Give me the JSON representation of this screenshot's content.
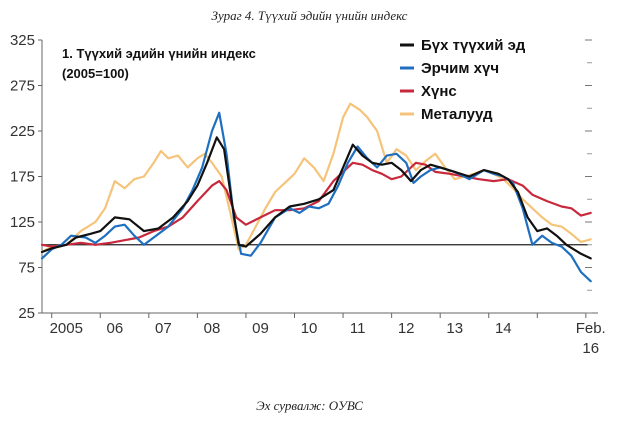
{
  "figure": {
    "caption": "Зураг 4. Түүхий эдийн үнийн индекс",
    "source": "Эх сурвалж: OУВС"
  },
  "chart_data": {
    "type": "line",
    "title": "1. Түүхий эдийн үнийн индекс",
    "subtitle": "(2005=100)",
    "xlabel": "",
    "ylabel": "",
    "ylim": [
      25,
      325
    ],
    "xlim": [
      2004.8,
      2016.25
    ],
    "yticks": [
      25,
      75,
      125,
      175,
      225,
      275,
      325
    ],
    "xticks": [
      {
        "label": "2005",
        "x": 2005.3
      },
      {
        "label": "06",
        "x": 2006.3
      },
      {
        "label": "07",
        "x": 2007.3
      },
      {
        "label": "08",
        "x": 2008.3
      },
      {
        "label": "09",
        "x": 2009.3
      },
      {
        "label": "10",
        "x": 2010.3
      },
      {
        "label": "11",
        "x": 2011.3
      },
      {
        "label": "12",
        "x": 2012.3
      },
      {
        "label": "13",
        "x": 2013.3
      },
      {
        "label": "14",
        "x": 2014.3
      },
      {
        "label": "Feb.",
        "label2": "16",
        "x": 2016.1
      }
    ],
    "reference_line": 100,
    "legend_position": "top-right",
    "grid": false,
    "series": [
      {
        "name": "Металууд",
        "color": "#f5c47a",
        "points": [
          [
            2004.8,
            92
          ],
          [
            2005.0,
            98
          ],
          [
            2005.3,
            100
          ],
          [
            2005.6,
            115
          ],
          [
            2005.9,
            125
          ],
          [
            2006.1,
            140
          ],
          [
            2006.3,
            170
          ],
          [
            2006.5,
            162
          ],
          [
            2006.7,
            172
          ],
          [
            2006.9,
            175
          ],
          [
            2007.1,
            190
          ],
          [
            2007.25,
            203
          ],
          [
            2007.4,
            195
          ],
          [
            2007.6,
            198
          ],
          [
            2007.8,
            185
          ],
          [
            2008.0,
            195
          ],
          [
            2008.15,
            200
          ],
          [
            2008.3,
            190
          ],
          [
            2008.5,
            175
          ],
          [
            2008.7,
            130
          ],
          [
            2008.85,
            95
          ],
          [
            2009.0,
            100
          ],
          [
            2009.2,
            120
          ],
          [
            2009.4,
            140
          ],
          [
            2009.6,
            158
          ],
          [
            2009.8,
            168
          ],
          [
            2010.0,
            178
          ],
          [
            2010.2,
            195
          ],
          [
            2010.4,
            185
          ],
          [
            2010.6,
            170
          ],
          [
            2010.8,
            200
          ],
          [
            2011.0,
            240
          ],
          [
            2011.15,
            255
          ],
          [
            2011.35,
            248
          ],
          [
            2011.5,
            240
          ],
          [
            2011.7,
            225
          ],
          [
            2011.9,
            190
          ],
          [
            2012.1,
            205
          ],
          [
            2012.3,
            198
          ],
          [
            2012.5,
            182
          ],
          [
            2012.7,
            192
          ],
          [
            2012.9,
            200
          ],
          [
            2013.1,
            185
          ],
          [
            2013.3,
            172
          ],
          [
            2013.5,
            175
          ],
          [
            2013.7,
            178
          ],
          [
            2013.9,
            182
          ],
          [
            2014.1,
            178
          ],
          [
            2014.3,
            172
          ],
          [
            2014.5,
            162
          ],
          [
            2014.7,
            150
          ],
          [
            2014.9,
            140
          ],
          [
            2015.1,
            130
          ],
          [
            2015.3,
            122
          ],
          [
            2015.5,
            120
          ],
          [
            2015.7,
            112
          ],
          [
            2015.9,
            103
          ],
          [
            2016.1,
            106
          ]
        ]
      },
      {
        "name": "Хүнс",
        "color": "#c8283c",
        "points": [
          [
            2004.8,
            100
          ],
          [
            2005.0,
            98
          ],
          [
            2005.3,
            100
          ],
          [
            2005.6,
            102
          ],
          [
            2005.9,
            100
          ],
          [
            2006.2,
            102
          ],
          [
            2006.5,
            105
          ],
          [
            2006.8,
            108
          ],
          [
            2007.1,
            115
          ],
          [
            2007.4,
            120
          ],
          [
            2007.7,
            130
          ],
          [
            2008.0,
            148
          ],
          [
            2008.3,
            165
          ],
          [
            2008.45,
            170
          ],
          [
            2008.6,
            160
          ],
          [
            2008.8,
            130
          ],
          [
            2009.0,
            122
          ],
          [
            2009.3,
            130
          ],
          [
            2009.6,
            138
          ],
          [
            2009.9,
            138
          ],
          [
            2010.2,
            140
          ],
          [
            2010.5,
            148
          ],
          [
            2010.8,
            170
          ],
          [
            2011.0,
            180
          ],
          [
            2011.2,
            190
          ],
          [
            2011.4,
            188
          ],
          [
            2011.6,
            182
          ],
          [
            2011.8,
            178
          ],
          [
            2012.0,
            172
          ],
          [
            2012.2,
            175
          ],
          [
            2012.5,
            190
          ],
          [
            2012.7,
            188
          ],
          [
            2012.9,
            180
          ],
          [
            2013.2,
            178
          ],
          [
            2013.5,
            175
          ],
          [
            2013.8,
            172
          ],
          [
            2014.1,
            170
          ],
          [
            2014.4,
            172
          ],
          [
            2014.7,
            165
          ],
          [
            2014.9,
            155
          ],
          [
            2015.2,
            148
          ],
          [
            2015.5,
            142
          ],
          [
            2015.7,
            140
          ],
          [
            2015.9,
            132
          ],
          [
            2016.1,
            135
          ]
        ]
      },
      {
        "name": "Эрчим хүч",
        "color": "#1f6fc0",
        "points": [
          [
            2004.8,
            85
          ],
          [
            2005.0,
            95
          ],
          [
            2005.2,
            100
          ],
          [
            2005.4,
            110
          ],
          [
            2005.7,
            108
          ],
          [
            2005.9,
            102
          ],
          [
            2006.1,
            110
          ],
          [
            2006.3,
            120
          ],
          [
            2006.5,
            122
          ],
          [
            2006.7,
            110
          ],
          [
            2006.9,
            100
          ],
          [
            2007.1,
            108
          ],
          [
            2007.4,
            120
          ],
          [
            2007.7,
            140
          ],
          [
            2007.9,
            160
          ],
          [
            2008.1,
            185
          ],
          [
            2008.3,
            225
          ],
          [
            2008.45,
            245
          ],
          [
            2008.6,
            200
          ],
          [
            2008.75,
            130
          ],
          [
            2008.9,
            90
          ],
          [
            2009.1,
            88
          ],
          [
            2009.3,
            102
          ],
          [
            2009.6,
            130
          ],
          [
            2009.9,
            140
          ],
          [
            2010.1,
            135
          ],
          [
            2010.3,
            142
          ],
          [
            2010.5,
            140
          ],
          [
            2010.7,
            145
          ],
          [
            2010.9,
            165
          ],
          [
            2011.1,
            190
          ],
          [
            2011.3,
            208
          ],
          [
            2011.5,
            195
          ],
          [
            2011.7,
            185
          ],
          [
            2011.9,
            198
          ],
          [
            2012.1,
            200
          ],
          [
            2012.3,
            190
          ],
          [
            2012.45,
            168
          ],
          [
            2012.6,
            175
          ],
          [
            2012.8,
            182
          ],
          [
            2013.0,
            185
          ],
          [
            2013.3,
            180
          ],
          [
            2013.6,
            172
          ],
          [
            2013.9,
            182
          ],
          [
            2014.1,
            178
          ],
          [
            2014.3,
            175
          ],
          [
            2014.5,
            168
          ],
          [
            2014.7,
            140
          ],
          [
            2014.9,
            100
          ],
          [
            2015.1,
            110
          ],
          [
            2015.3,
            102
          ],
          [
            2015.5,
            98
          ],
          [
            2015.7,
            88
          ],
          [
            2015.9,
            70
          ],
          [
            2016.1,
            60
          ]
        ]
      },
      {
        "name": "Бүх түүхий эд",
        "color": "#111111",
        "points": [
          [
            2004.8,
            92
          ],
          [
            2005.0,
            96
          ],
          [
            2005.3,
            100
          ],
          [
            2005.5,
            108
          ],
          [
            2005.8,
            112
          ],
          [
            2006.0,
            115
          ],
          [
            2006.3,
            130
          ],
          [
            2006.6,
            128
          ],
          [
            2006.9,
            115
          ],
          [
            2007.2,
            118
          ],
          [
            2007.5,
            130
          ],
          [
            2007.8,
            148
          ],
          [
            2008.0,
            165
          ],
          [
            2008.2,
            190
          ],
          [
            2008.4,
            218
          ],
          [
            2008.55,
            205
          ],
          [
            2008.7,
            150
          ],
          [
            2008.85,
            100
          ],
          [
            2009.0,
            98
          ],
          [
            2009.3,
            112
          ],
          [
            2009.6,
            130
          ],
          [
            2009.9,
            142
          ],
          [
            2010.2,
            145
          ],
          [
            2010.5,
            150
          ],
          [
            2010.8,
            160
          ],
          [
            2011.0,
            185
          ],
          [
            2011.2,
            210
          ],
          [
            2011.4,
            198
          ],
          [
            2011.6,
            190
          ],
          [
            2011.8,
            188
          ],
          [
            2012.0,
            190
          ],
          [
            2012.2,
            182
          ],
          [
            2012.4,
            170
          ],
          [
            2012.6,
            182
          ],
          [
            2012.8,
            188
          ],
          [
            2013.0,
            185
          ],
          [
            2013.3,
            180
          ],
          [
            2013.6,
            175
          ],
          [
            2013.9,
            182
          ],
          [
            2014.2,
            178
          ],
          [
            2014.4,
            172
          ],
          [
            2014.6,
            158
          ],
          [
            2014.8,
            130
          ],
          [
            2015.0,
            115
          ],
          [
            2015.2,
            118
          ],
          [
            2015.4,
            110
          ],
          [
            2015.6,
            100
          ],
          [
            2015.9,
            90
          ],
          [
            2016.1,
            85
          ]
        ]
      }
    ]
  }
}
